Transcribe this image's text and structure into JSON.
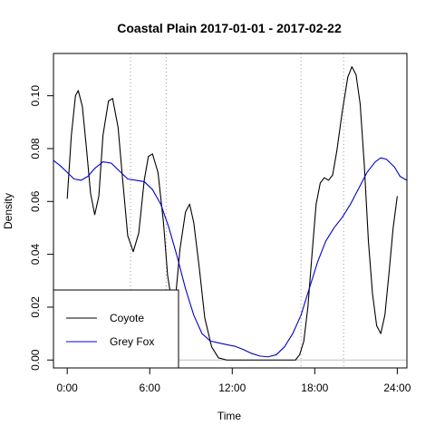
{
  "chart_data": {
    "type": "line",
    "title": "Coastal Plain 2017-01-01 - 2017-02-22",
    "xlabel": "Time",
    "ylabel": "Density",
    "xlim": [
      -1,
      24.7
    ],
    "ylim": [
      -0.003,
      0.116
    ],
    "x_ticks": [
      {
        "value": 0,
        "label": "0:00"
      },
      {
        "value": 6,
        "label": "6:00"
      },
      {
        "value": 12,
        "label": "12:00"
      },
      {
        "value": 18,
        "label": "18:00"
      },
      {
        "value": 24,
        "label": "24:00"
      }
    ],
    "y_ticks": [
      {
        "value": 0.0,
        "label": "0.00"
      },
      {
        "value": 0.02,
        "label": "0.02"
      },
      {
        "value": 0.04,
        "label": "0.04"
      },
      {
        "value": 0.06,
        "label": "0.06"
      },
      {
        "value": 0.08,
        "label": "0.08"
      },
      {
        "value": 0.1,
        "label": "0.10"
      }
    ],
    "vertical_reference_lines": [
      4.6,
      7.2,
      17.0,
      20.1
    ],
    "baseline": 0,
    "series": [
      {
        "name": "Coyote",
        "color": "#000000",
        "points": [
          [
            0.0,
            0.061
          ],
          [
            0.3,
            0.085
          ],
          [
            0.6,
            0.1
          ],
          [
            0.8,
            0.102
          ],
          [
            1.1,
            0.096
          ],
          [
            1.4,
            0.08
          ],
          [
            1.7,
            0.063
          ],
          [
            2.0,
            0.055
          ],
          [
            2.3,
            0.062
          ],
          [
            2.6,
            0.085
          ],
          [
            3.0,
            0.098
          ],
          [
            3.3,
            0.099
          ],
          [
            3.7,
            0.088
          ],
          [
            4.0,
            0.07
          ],
          [
            4.4,
            0.047
          ],
          [
            4.8,
            0.041
          ],
          [
            5.2,
            0.048
          ],
          [
            5.6,
            0.068
          ],
          [
            5.9,
            0.077
          ],
          [
            6.2,
            0.078
          ],
          [
            6.6,
            0.071
          ],
          [
            7.0,
            0.052
          ],
          [
            7.3,
            0.032
          ],
          [
            7.6,
            0.022
          ],
          [
            7.9,
            0.025
          ],
          [
            8.2,
            0.042
          ],
          [
            8.6,
            0.056
          ],
          [
            8.9,
            0.059
          ],
          [
            9.2,
            0.052
          ],
          [
            9.6,
            0.035
          ],
          [
            10.0,
            0.016
          ],
          [
            10.5,
            0.005
          ],
          [
            11.0,
            0.0008
          ],
          [
            11.6,
            0.0
          ],
          [
            12.5,
            0.0
          ],
          [
            14.0,
            0.0
          ],
          [
            15.5,
            0.0
          ],
          [
            16.6,
            0.0
          ],
          [
            16.9,
            0.002
          ],
          [
            17.2,
            0.007
          ],
          [
            17.5,
            0.02
          ],
          [
            17.8,
            0.04
          ],
          [
            18.1,
            0.059
          ],
          [
            18.4,
            0.067
          ],
          [
            18.7,
            0.069
          ],
          [
            19.0,
            0.068
          ],
          [
            19.3,
            0.07
          ],
          [
            19.6,
            0.079
          ],
          [
            20.0,
            0.094
          ],
          [
            20.4,
            0.107
          ],
          [
            20.7,
            0.111
          ],
          [
            21.0,
            0.108
          ],
          [
            21.3,
            0.097
          ],
          [
            21.6,
            0.074
          ],
          [
            21.9,
            0.045
          ],
          [
            22.2,
            0.025
          ],
          [
            22.5,
            0.013
          ],
          [
            22.8,
            0.01
          ],
          [
            23.1,
            0.017
          ],
          [
            23.4,
            0.033
          ],
          [
            23.7,
            0.05
          ],
          [
            24.0,
            0.062
          ]
        ]
      },
      {
        "name": "Grey Fox",
        "color": "#0000cd",
        "points": [
          [
            -1.0,
            0.0755
          ],
          [
            -0.5,
            0.0735
          ],
          [
            0.0,
            0.071
          ],
          [
            0.5,
            0.0685
          ],
          [
            1.0,
            0.068
          ],
          [
            1.5,
            0.0695
          ],
          [
            2.0,
            0.0725
          ],
          [
            2.6,
            0.075
          ],
          [
            3.2,
            0.0745
          ],
          [
            3.8,
            0.0715
          ],
          [
            4.4,
            0.0685
          ],
          [
            5.0,
            0.068
          ],
          [
            5.6,
            0.0675
          ],
          [
            6.2,
            0.0645
          ],
          [
            6.8,
            0.059
          ],
          [
            7.4,
            0.05
          ],
          [
            8.0,
            0.039
          ],
          [
            8.6,
            0.027
          ],
          [
            9.2,
            0.017
          ],
          [
            9.8,
            0.01
          ],
          [
            10.4,
            0.0072
          ],
          [
            11.0,
            0.0065
          ],
          [
            11.6,
            0.0058
          ],
          [
            12.2,
            0.0052
          ],
          [
            12.8,
            0.004
          ],
          [
            13.4,
            0.0025
          ],
          [
            14.0,
            0.0015
          ],
          [
            14.6,
            0.0012
          ],
          [
            15.2,
            0.002
          ],
          [
            15.8,
            0.005
          ],
          [
            16.4,
            0.01
          ],
          [
            17.0,
            0.017
          ],
          [
            17.6,
            0.027
          ],
          [
            18.2,
            0.037
          ],
          [
            18.8,
            0.045
          ],
          [
            19.4,
            0.05
          ],
          [
            20.0,
            0.054
          ],
          [
            20.6,
            0.059
          ],
          [
            21.2,
            0.065
          ],
          [
            21.8,
            0.071
          ],
          [
            22.4,
            0.075
          ],
          [
            22.8,
            0.0765
          ],
          [
            23.2,
            0.076
          ],
          [
            23.8,
            0.073
          ],
          [
            24.2,
            0.0695
          ],
          [
            24.7,
            0.068
          ]
        ]
      }
    ],
    "legend": {
      "position": "bottom-left",
      "entries": [
        {
          "name": "Coyote",
          "color": "#000000"
        },
        {
          "name": "Grey Fox",
          "color": "#0000cd"
        }
      ]
    }
  }
}
